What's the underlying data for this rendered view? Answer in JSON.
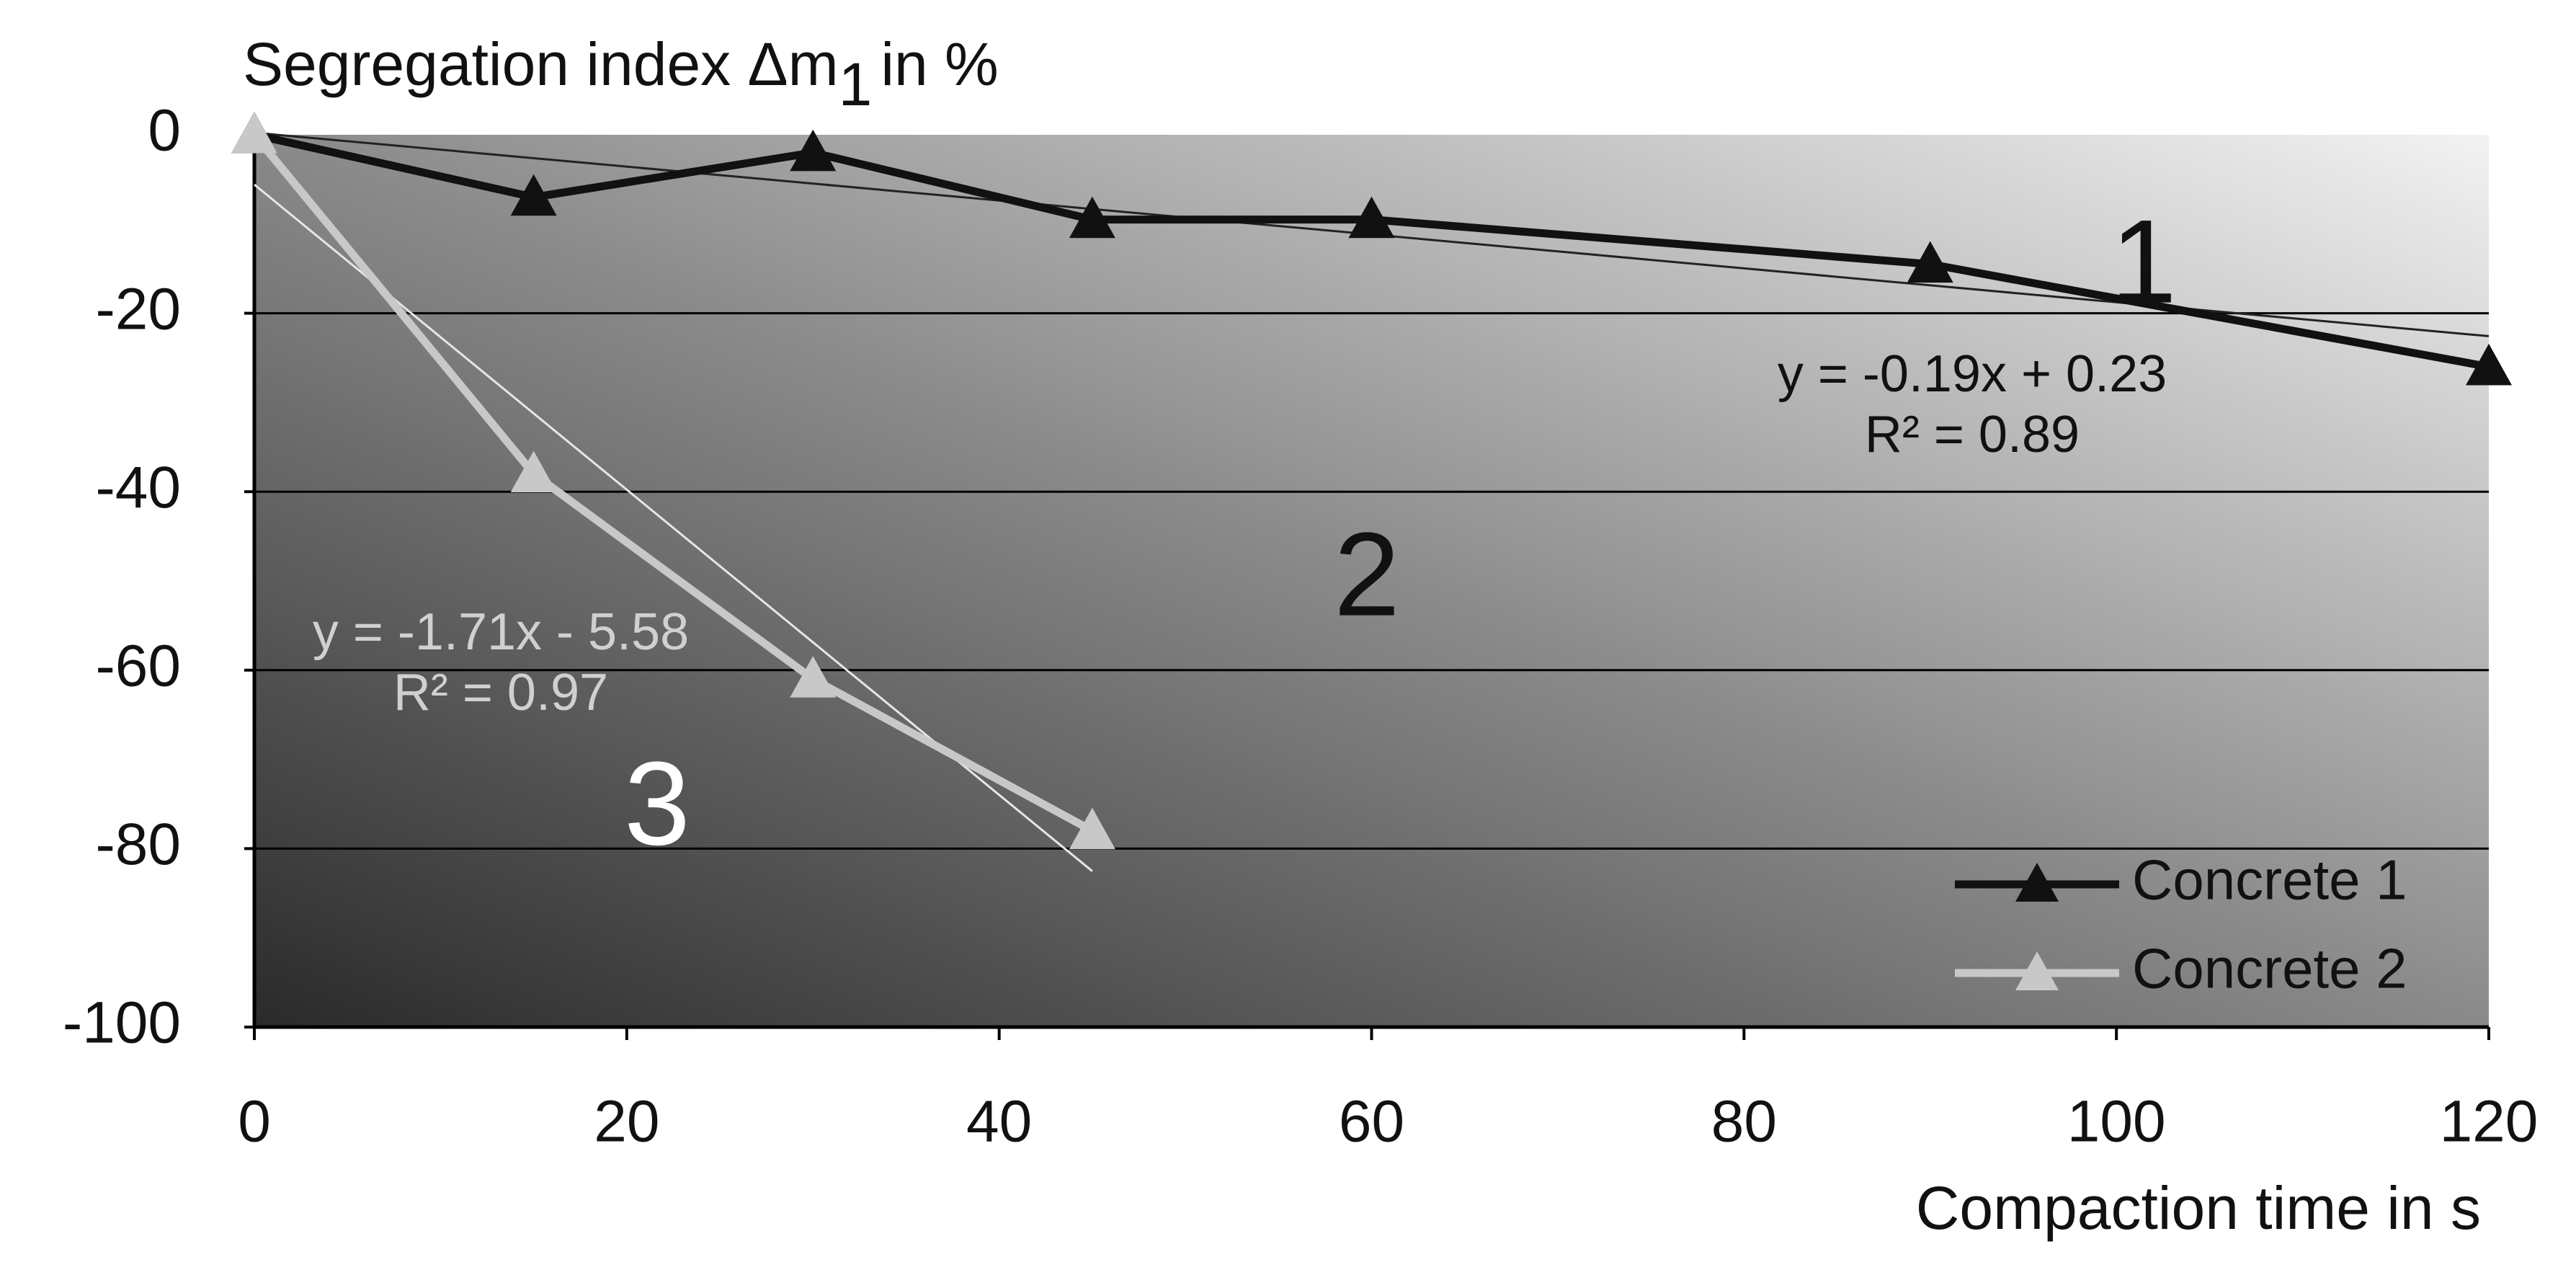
{
  "chart_data": {
    "type": "line",
    "ylabel": [
      "Segregation index Δm",
      "1",
      "in %"
    ],
    "xlabel": "Compaction time in s",
    "xlim": [
      0,
      120
    ],
    "xticks": [
      0,
      20,
      40,
      60,
      80,
      100,
      120
    ],
    "ylim": [
      -100,
      0
    ],
    "yticks": [
      -100,
      -80,
      -60,
      -40,
      -20,
      0
    ],
    "grid": true,
    "legend": "lower right",
    "series": [
      {
        "name": "Concrete 1",
        "color": "#111111",
        "x": [
          0,
          15,
          30,
          45,
          60,
          90,
          120
        ],
        "values": [
          0,
          -7,
          -2,
          -9.5,
          -9.5,
          -14.5,
          -26
        ],
        "trendline": {
          "slope": -0.19,
          "intercept": 0.23,
          "equation": "y = -0.19x + 0.23",
          "r2": "R² = 0.89"
        }
      },
      {
        "name": "Concrete 2",
        "color": "#c8c8c8",
        "x": [
          0,
          15,
          30,
          45
        ],
        "values": [
          0,
          -38,
          -61,
          -78
        ],
        "trendline": {
          "slope": -1.71,
          "intercept": -5.58,
          "equation": "y = -1.71x - 5.58",
          "r2": "R² = 0.97"
        }
      }
    ],
    "annotations": [
      "1",
      "2",
      "3"
    ]
  }
}
